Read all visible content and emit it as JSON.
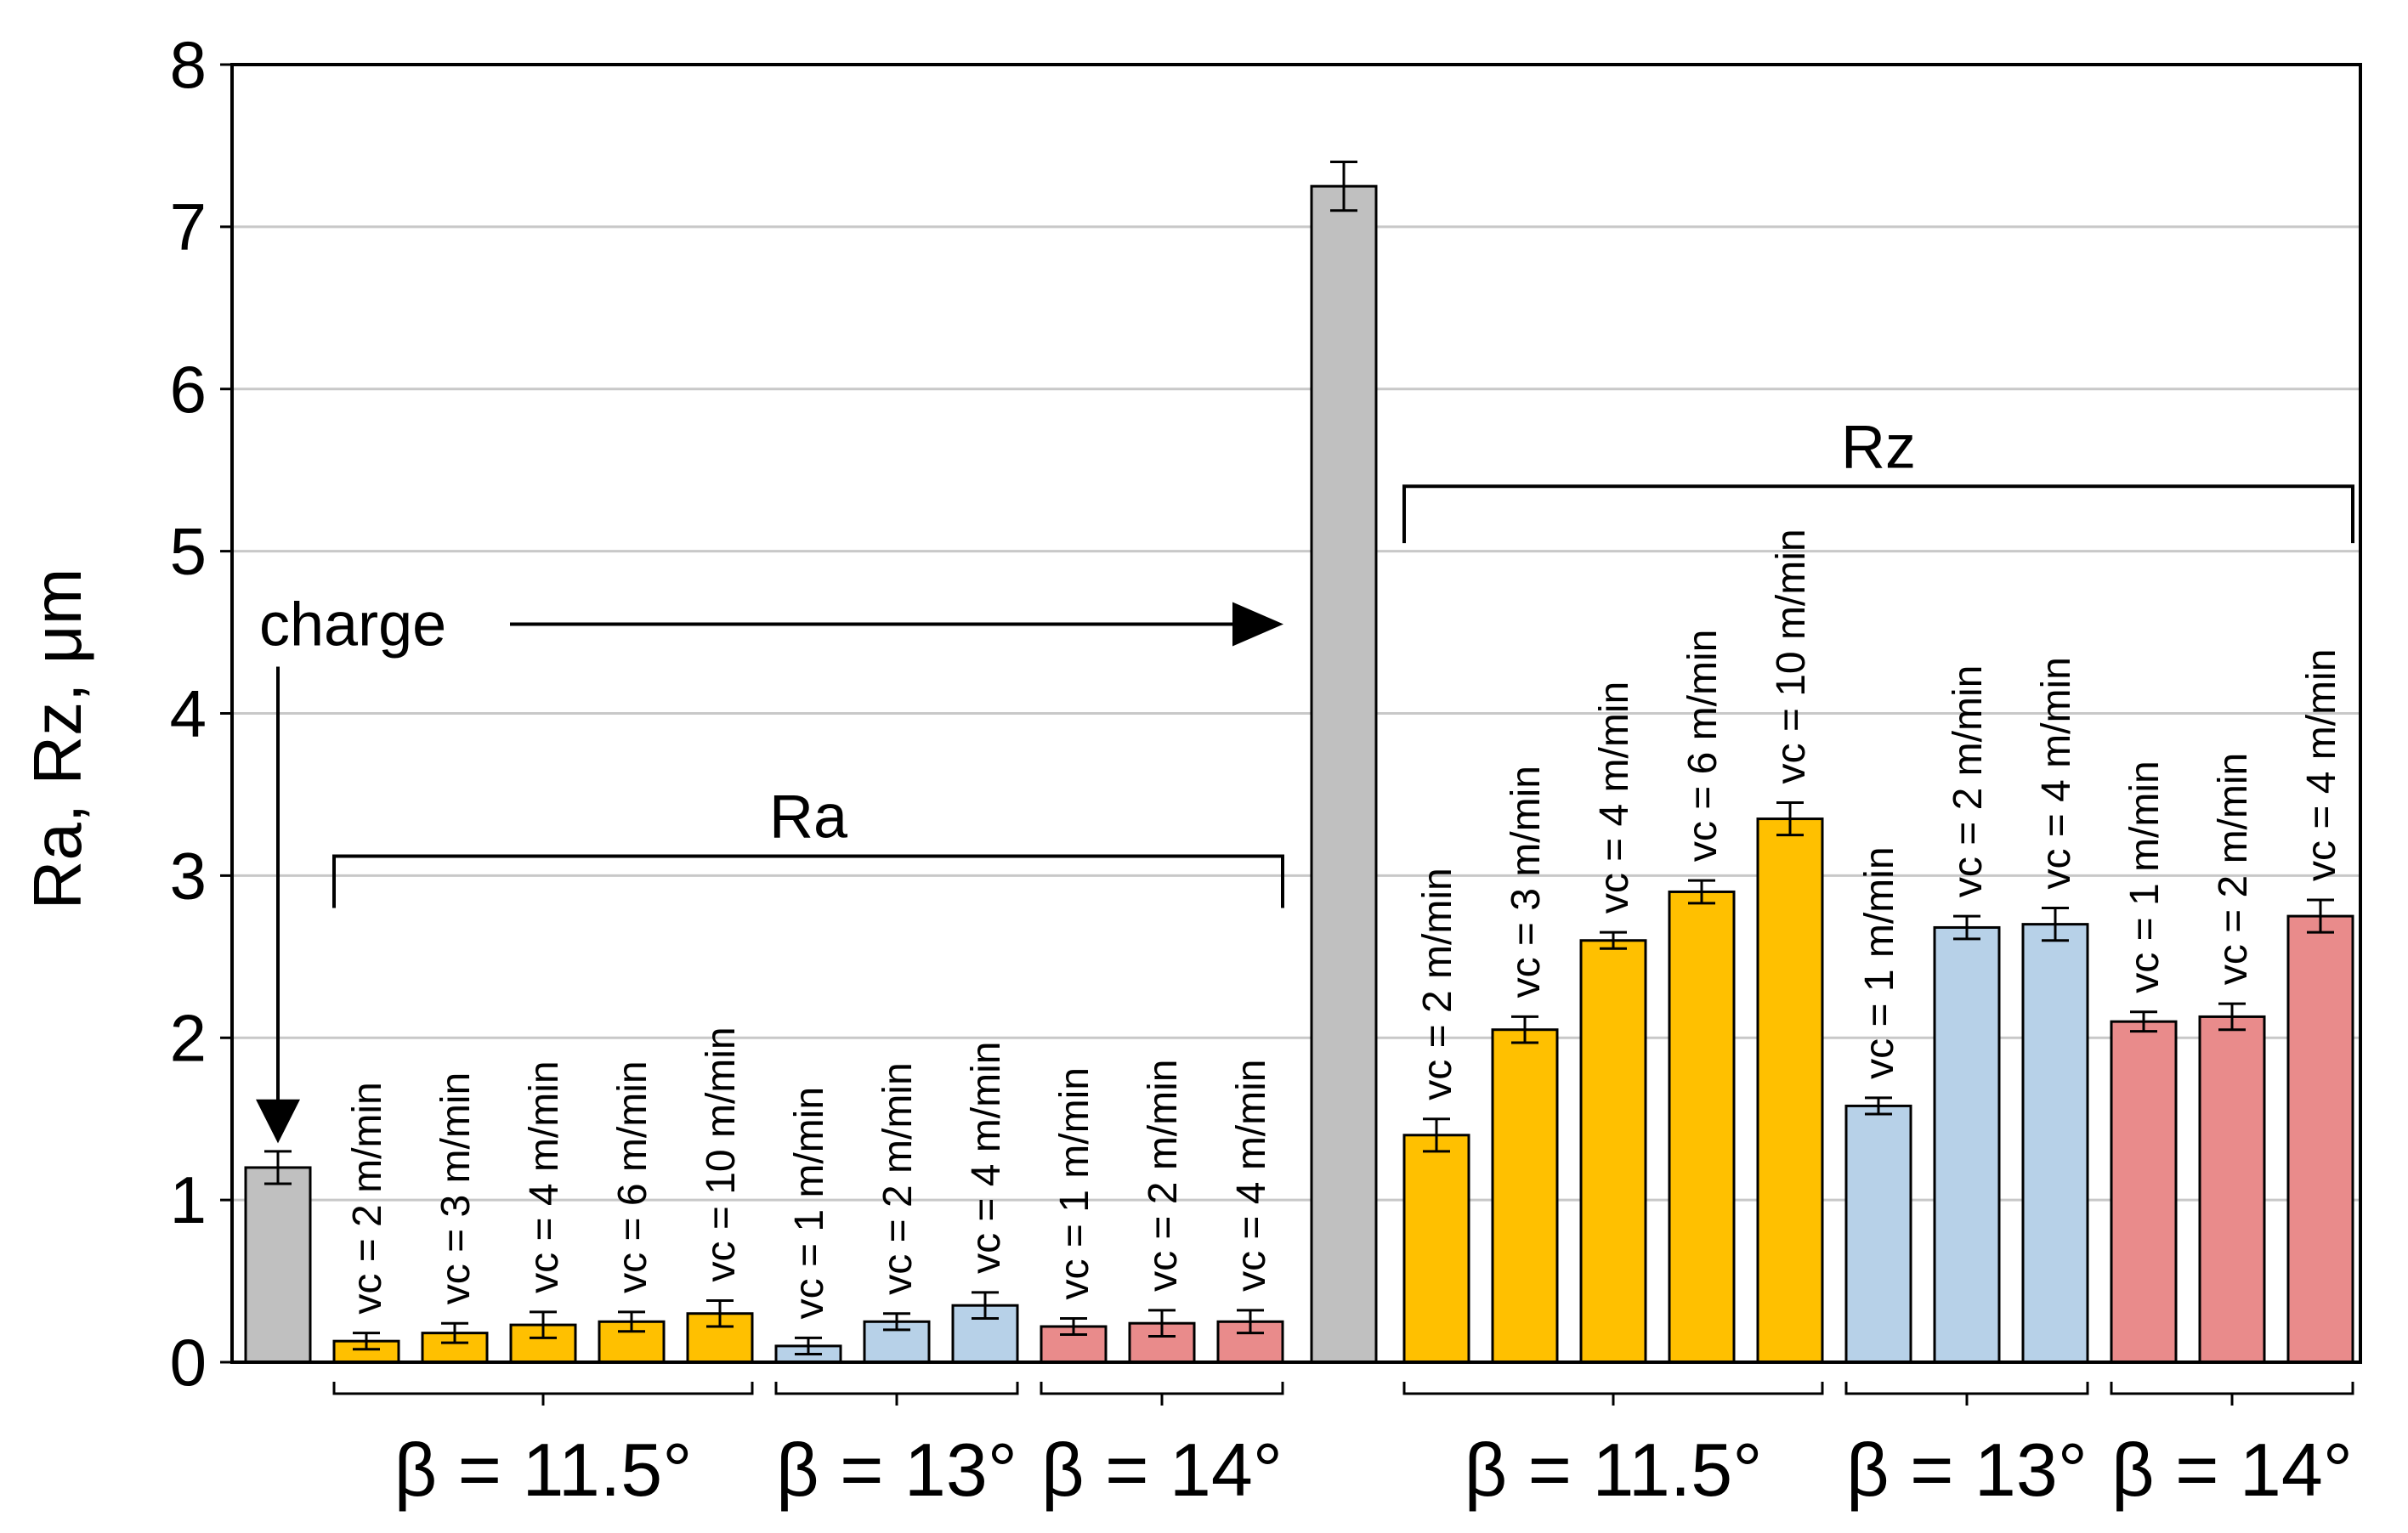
{
  "chart_data": {
    "type": "bar",
    "title": "",
    "xlabel": "",
    "ylabel": "Ra, Rz, μm",
    "ylim": [
      0,
      8
    ],
    "yticks": [
      0,
      1,
      2,
      3,
      4,
      5,
      6,
      7,
      8
    ],
    "colors": {
      "charge": "#c0c0c0",
      "b115": "#ffc000",
      "b13": "#b7d1e8",
      "b14": "#e98b8b"
    },
    "bars": [
      {
        "metric": "Ra",
        "group": "charge",
        "label": "",
        "value": 1.2,
        "error": 0.1
      },
      {
        "metric": "Ra",
        "group": "b115",
        "label": "vc = 2 m/min",
        "value": 0.13,
        "error": 0.05
      },
      {
        "metric": "Ra",
        "group": "b115",
        "label": "vc = 3 m/min",
        "value": 0.18,
        "error": 0.06
      },
      {
        "metric": "Ra",
        "group": "b115",
        "label": "vc = 4 m/min",
        "value": 0.23,
        "error": 0.08
      },
      {
        "metric": "Ra",
        "group": "b115",
        "label": "vc = 6 m/min",
        "value": 0.25,
        "error": 0.06
      },
      {
        "metric": "Ra",
        "group": "b115",
        "label": "vc = 10 m/min",
        "value": 0.3,
        "error": 0.08
      },
      {
        "metric": "Ra",
        "group": "b13",
        "label": "vc = 1 m/min",
        "value": 0.1,
        "error": 0.05
      },
      {
        "metric": "Ra",
        "group": "b13",
        "label": "vc = 2 m/min",
        "value": 0.25,
        "error": 0.05
      },
      {
        "metric": "Ra",
        "group": "b13",
        "label": "vc = 4 m/min",
        "value": 0.35,
        "error": 0.08
      },
      {
        "metric": "Ra",
        "group": "b14",
        "label": "vc = 1 m/min",
        "value": 0.22,
        "error": 0.05
      },
      {
        "metric": "Ra",
        "group": "b14",
        "label": "vc = 2 m/min",
        "value": 0.24,
        "error": 0.08
      },
      {
        "metric": "Ra",
        "group": "b14",
        "label": "vc = 4 m/min",
        "value": 0.25,
        "error": 0.07
      },
      {
        "metric": "Rz",
        "group": "charge",
        "label": "",
        "value": 7.25,
        "error": 0.15
      },
      {
        "metric": "Rz",
        "group": "b115",
        "label": "vc = 2 m/min",
        "value": 1.4,
        "error": 0.1
      },
      {
        "metric": "Rz",
        "group": "b115",
        "label": "vc = 3 m/min",
        "value": 2.05,
        "error": 0.08
      },
      {
        "metric": "Rz",
        "group": "b115",
        "label": "vc = 4 m/min",
        "value": 2.6,
        "error": 0.05
      },
      {
        "metric": "Rz",
        "group": "b115",
        "label": "vc = 6 m/min",
        "value": 2.9,
        "error": 0.07
      },
      {
        "metric": "Rz",
        "group": "b115",
        "label": "vc = 10 m/min",
        "value": 3.35,
        "error": 0.1
      },
      {
        "metric": "Rz",
        "group": "b13",
        "label": "vc = 1 m/min",
        "value": 1.58,
        "error": 0.05
      },
      {
        "metric": "Rz",
        "group": "b13",
        "label": "vc = 2 m/min",
        "value": 2.68,
        "error": 0.07
      },
      {
        "metric": "Rz",
        "group": "b13",
        "label": "vc = 4 m/min",
        "value": 2.7,
        "error": 0.1
      },
      {
        "metric": "Rz",
        "group": "b14",
        "label": "vc = 1 m/min",
        "value": 2.1,
        "error": 0.06
      },
      {
        "metric": "Rz",
        "group": "b14",
        "label": "vc = 2 m/min",
        "value": 2.13,
        "error": 0.08
      },
      {
        "metric": "Rz",
        "group": "b14",
        "label": "vc = 4 m/min",
        "value": 2.75,
        "error": 0.1
      }
    ],
    "group_labels": [
      {
        "text": "β = 11.5°",
        "metric": "Ra"
      },
      {
        "text": "β = 13°",
        "metric": "Ra"
      },
      {
        "text": "β = 14°",
        "metric": "Ra"
      },
      {
        "text": "β = 11.5°",
        "metric": "Rz"
      },
      {
        "text": "β = 13°",
        "metric": "Rz"
      },
      {
        "text": "β = 14°",
        "metric": "Rz"
      }
    ],
    "annotations": {
      "charge": "charge",
      "ra_bracket": "Ra",
      "rz_bracket": "Rz"
    }
  }
}
